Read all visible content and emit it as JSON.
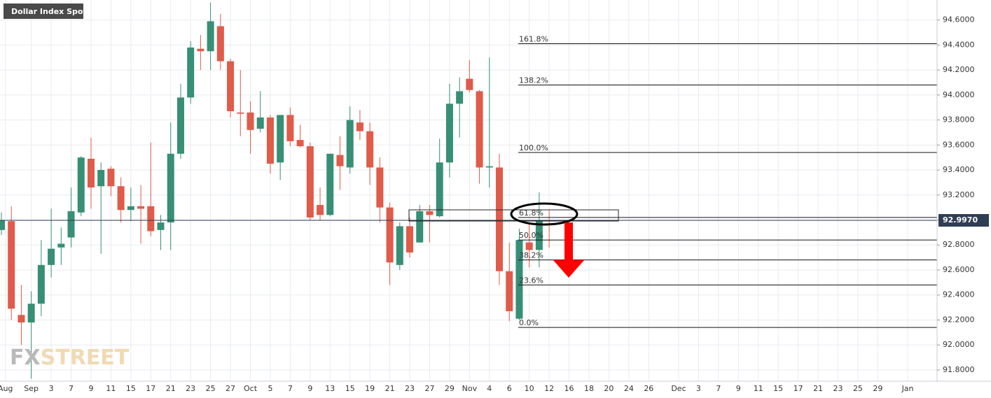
{
  "chart_data": {
    "type": "candlestick",
    "title": "Dollar Index Spot",
    "watermark": {
      "fx": "FX",
      "street": "STREET"
    },
    "up_color": "#378f75",
    "down_color": "#df5b4a",
    "grid": true,
    "x": [
      0,
      1,
      2,
      3,
      4,
      5,
      6,
      7,
      8,
      9,
      10,
      11,
      12,
      13,
      14,
      15,
      16,
      17,
      18,
      19,
      20,
      21,
      22,
      23,
      24,
      25,
      26,
      27,
      28,
      29,
      30,
      31,
      32,
      33,
      34,
      35,
      36,
      37,
      38,
      39,
      40,
      41,
      42,
      43,
      44,
      45,
      46,
      47,
      48,
      49,
      50,
      51,
      52,
      53,
      54,
      55
    ],
    "open": [
      92.92,
      92.99,
      92.24,
      92.18,
      92.33,
      92.64,
      92.78,
      92.86,
      93.06,
      93.49,
      93.27,
      93.41,
      93.27,
      93.08,
      93.11,
      93.11,
      92.92,
      92.98,
      93.53,
      93.98,
      94.37,
      94.35,
      94.55,
      94.27,
      93.86,
      93.86,
      93.73,
      93.82,
      93.46,
      93.84,
      93.64,
      93.59,
      93.12,
      93.04,
      93.52,
      93.42,
      93.78,
      93.71,
      93.42,
      93.1,
      92.64,
      92.95,
      92.82,
      93.07,
      93.03,
      93.46,
      93.93,
      94.13,
      94.03,
      93.42,
      93.42,
      92.59,
      92.21,
      92.82,
      92.76,
      93.0
    ],
    "high": [
      93.06,
      93.11,
      92.48,
      92.43,
      92.84,
      93.09,
      92.94,
      93.26,
      93.51,
      93.66,
      93.46,
      93.43,
      93.34,
      93.26,
      93.28,
      93.62,
      93.04,
      93.78,
      94.09,
      94.43,
      94.48,
      94.74,
      94.65,
      94.29,
      94.2,
      93.95,
      94.03,
      93.84,
      93.84,
      93.9,
      93.76,
      93.62,
      93.26,
      93.53,
      93.67,
      93.91,
      93.88,
      93.78,
      93.5,
      93.14,
      92.98,
      93.02,
      93.12,
      93.12,
      93.65,
      94.09,
      94.14,
      94.28,
      94.04,
      94.3,
      93.53,
      92.82,
      92.93,
      92.98,
      93.22,
      93.08
    ],
    "low": [
      92.88,
      92.2,
      92.0,
      91.73,
      92.23,
      92.54,
      92.64,
      92.78,
      93.03,
      93.09,
      92.73,
      93.19,
      92.98,
      92.99,
      92.81,
      92.87,
      92.76,
      92.76,
      93.49,
      93.93,
      94.2,
      94.2,
      94.2,
      93.82,
      93.67,
      93.53,
      93.7,
      93.37,
      93.32,
      93.59,
      93.58,
      93.0,
      93.0,
      93.03,
      93.24,
      93.37,
      93.64,
      93.28,
      92.98,
      92.48,
      92.6,
      92.7,
      92.82,
      92.82,
      93.02,
      93.34,
      93.66,
      94.02,
      93.29,
      93.26,
      92.48,
      92.19,
      92.2,
      92.62,
      92.62,
      92.78
    ],
    "close": [
      93.0,
      92.29,
      92.18,
      92.33,
      92.64,
      92.77,
      92.81,
      93.07,
      93.5,
      93.26,
      93.4,
      93.27,
      93.08,
      93.11,
      93.09,
      92.91,
      92.98,
      93.53,
      93.98,
      94.38,
      94.35,
      94.59,
      94.27,
      93.87,
      93.85,
      93.72,
      93.82,
      93.45,
      93.84,
      93.63,
      93.59,
      93.02,
      93.04,
      93.53,
      93.43,
      93.8,
      93.71,
      93.42,
      93.1,
      92.66,
      92.95,
      92.74,
      93.07,
      93.04,
      93.46,
      93.93,
      94.03,
      94.04,
      93.42,
      93.43,
      92.59,
      92.27,
      92.84,
      92.76,
      93.0,
      92.997
    ],
    "last_price": {
      "value": 92.997,
      "label": "92.9970"
    },
    "fib_levels": [
      {
        "value": 94.41,
        "label": "161.8%"
      },
      {
        "value": 94.08,
        "label": "138.2%"
      },
      {
        "value": 93.54,
        "label": "100.0%"
      },
      {
        "value": 93.02,
        "label": "61.8%"
      },
      {
        "value": 92.84,
        "label": "50.0%"
      },
      {
        "value": 92.68,
        "label": "38.2%"
      },
      {
        "value": 92.48,
        "label": "23.6%"
      },
      {
        "value": 92.14,
        "label": "0.0%"
      }
    ],
    "ylim": [
      91.71,
      94.76
    ],
    "yticks": [
      {
        "value": 91.8,
        "label": "91.8000"
      },
      {
        "value": 92.0,
        "label": "92.0000"
      },
      {
        "value": 92.2,
        "label": "92.2000"
      },
      {
        "value": 92.4,
        "label": "92.4000"
      },
      {
        "value": 92.6,
        "label": "92.6000"
      },
      {
        "value": 92.8,
        "label": "92.8000"
      },
      {
        "value": 93.0,
        "label": "93.0000"
      },
      {
        "value": 93.2,
        "label": "93.2000"
      },
      {
        "value": 93.4,
        "label": "93.4000"
      },
      {
        "value": 93.6,
        "label": "93.6000"
      },
      {
        "value": 93.8,
        "label": "93.8000"
      },
      {
        "value": 94.0,
        "label": "94.0000"
      },
      {
        "value": 94.2,
        "label": "94.2000"
      },
      {
        "value": 94.4,
        "label": "94.4000"
      },
      {
        "value": 94.6,
        "label": "94.6000"
      }
    ],
    "xlim": [
      -0.14,
      93.95
    ],
    "xticks": [
      {
        "value": 0.4,
        "label": "Aug"
      },
      {
        "value": 3,
        "label": "Sep"
      },
      {
        "value": 5,
        "label": "3"
      },
      {
        "value": 7,
        "label": "7"
      },
      {
        "value": 9,
        "label": "9"
      },
      {
        "value": 11,
        "label": "11"
      },
      {
        "value": 13,
        "label": "15"
      },
      {
        "value": 15,
        "label": "17"
      },
      {
        "value": 17,
        "label": "21"
      },
      {
        "value": 19,
        "label": "23"
      },
      {
        "value": 21,
        "label": "25"
      },
      {
        "value": 23,
        "label": "27"
      },
      {
        "value": 25,
        "label": "Oct"
      },
      {
        "value": 27,
        "label": "5"
      },
      {
        "value": 29,
        "label": "7"
      },
      {
        "value": 31,
        "label": "9"
      },
      {
        "value": 33,
        "label": "13"
      },
      {
        "value": 35,
        "label": "15"
      },
      {
        "value": 37,
        "label": "19"
      },
      {
        "value": 39,
        "label": "21"
      },
      {
        "value": 41,
        "label": "23"
      },
      {
        "value": 43,
        "label": "27"
      },
      {
        "value": 45,
        "label": "29"
      },
      {
        "value": 47,
        "label": "Nov"
      },
      {
        "value": 49,
        "label": "4"
      },
      {
        "value": 51,
        "label": "6"
      },
      {
        "value": 53,
        "label": "10"
      },
      {
        "value": 55,
        "label": "12"
      },
      {
        "value": 57,
        "label": "16"
      },
      {
        "value": 59,
        "label": "18"
      },
      {
        "value": 61,
        "label": "20"
      },
      {
        "value": 63,
        "label": "24"
      },
      {
        "value": 65,
        "label": "26"
      },
      {
        "value": 68,
        "label": "Dec"
      },
      {
        "value": 70,
        "label": "3"
      },
      {
        "value": 72,
        "label": "7"
      },
      {
        "value": 74,
        "label": "9"
      },
      {
        "value": 76,
        "label": "11"
      },
      {
        "value": 78,
        "label": "15"
      },
      {
        "value": 80,
        "label": "17"
      },
      {
        "value": 82,
        "label": "21"
      },
      {
        "value": 84,
        "label": "23"
      },
      {
        "value": 86,
        "label": "25"
      },
      {
        "value": 88,
        "label": "29"
      },
      {
        "value": 91,
        "label": "Jan"
      }
    ]
  }
}
